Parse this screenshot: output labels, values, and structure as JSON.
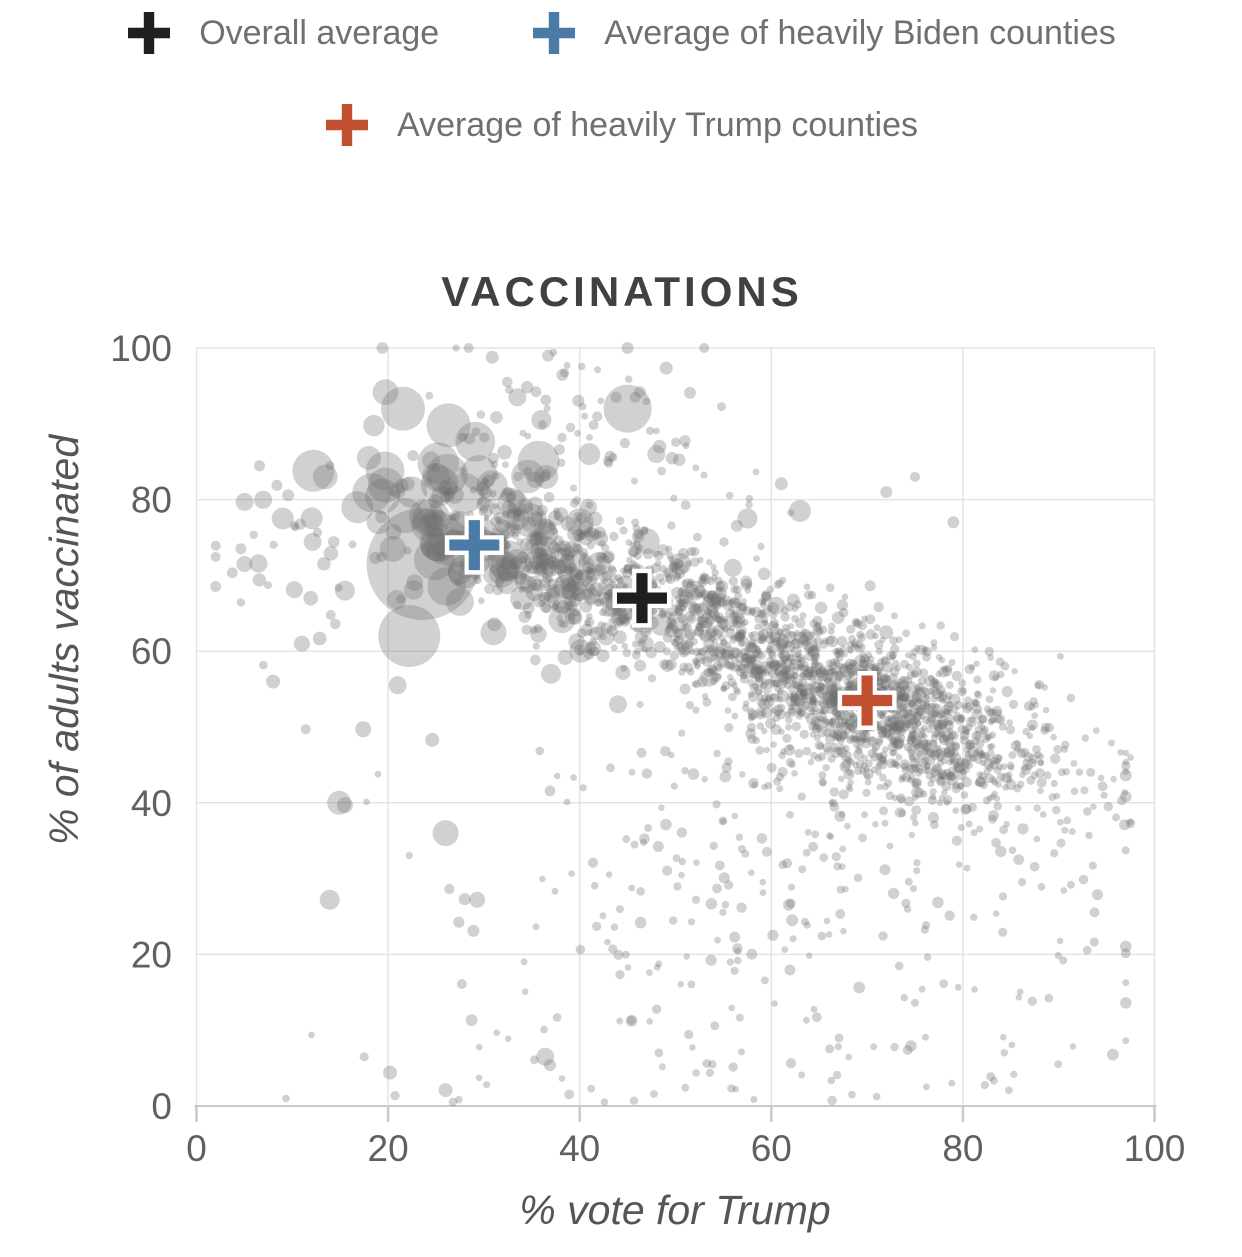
{
  "legend": {
    "items": [
      {
        "id": "overall",
        "label": "Overall average",
        "color": "#1f1f1f"
      },
      {
        "id": "biden",
        "label": "Average of heavily Biden counties",
        "color": "#4a7ba6"
      },
      {
        "id": "trump",
        "label": "Average of heavily Trump counties",
        "color": "#c0502f"
      }
    ]
  },
  "chart_data": {
    "type": "scatter",
    "title": "VACCINATIONS",
    "xlabel": "% vote for Trump",
    "ylabel": "% of adults vaccinated",
    "xlim": [
      0,
      100
    ],
    "ylim": [
      0,
      100
    ],
    "xticks": [
      0,
      20,
      40,
      60,
      80,
      100
    ],
    "yticks": [
      0,
      20,
      40,
      60,
      80,
      100
    ],
    "grid": true,
    "legend_position": "top",
    "point_style": {
      "color": "#6f6f6f",
      "opacity": 0.32
    },
    "markers": [
      {
        "name": "overall-average",
        "label": "Overall average",
        "x": 46.5,
        "y": 67,
        "color": "#1f1f1f"
      },
      {
        "name": "biden-average",
        "label": "Average of heavily Biden counties",
        "x": 29,
        "y": 74,
        "color": "#4a7ba6"
      },
      {
        "name": "trump-average",
        "label": "Average of heavily Trump counties",
        "x": 70,
        "y": 53.5,
        "color": "#c0502f"
      }
    ],
    "featured_points": [
      [
        23.6,
        71.5,
        56
      ],
      [
        22.2,
        62,
        31
      ],
      [
        45,
        92,
        24
      ],
      [
        26.3,
        89.8,
        22
      ],
      [
        12.2,
        83.8,
        21
      ],
      [
        29.5,
        83.5,
        18
      ],
      [
        24.5,
        77.5,
        19
      ],
      [
        28,
        70.5,
        17
      ],
      [
        16.8,
        79,
        16
      ],
      [
        33,
        79.5,
        15
      ],
      [
        33.5,
        71.5,
        15
      ],
      [
        30,
        74,
        16
      ],
      [
        25,
        83,
        14
      ],
      [
        36.5,
        75.5,
        12
      ],
      [
        20.5,
        73.5,
        13
      ],
      [
        27.5,
        66.5,
        14
      ],
      [
        31,
        62.5,
        13
      ],
      [
        38.5,
        68.5,
        12
      ],
      [
        42,
        71.5,
        12
      ],
      [
        44.5,
        66,
        11
      ],
      [
        47,
        74.5,
        13
      ],
      [
        50.5,
        71.5,
        11
      ],
      [
        40,
        77,
        14
      ],
      [
        36.5,
        83,
        12
      ],
      [
        34,
        67,
        12
      ],
      [
        19,
        77,
        12
      ],
      [
        18,
        85.5,
        12
      ],
      [
        15.5,
        68,
        10
      ],
      [
        11,
        61,
        8
      ],
      [
        21,
        55.5,
        9
      ],
      [
        26,
        36,
        13
      ],
      [
        13.9,
        27.2,
        10
      ],
      [
        9,
        77.5,
        11
      ],
      [
        5,
        71.5,
        8
      ],
      [
        48.5,
        63.5,
        11
      ],
      [
        52,
        68,
        10
      ],
      [
        57.5,
        77.5,
        10
      ],
      [
        63,
        78.5,
        11
      ],
      [
        36,
        90.5,
        10
      ],
      [
        41,
        86,
        11
      ],
      [
        33.5,
        93.5,
        9
      ],
      [
        37,
        57,
        10
      ],
      [
        44,
        53,
        9
      ],
      [
        53.5,
        56.5,
        9
      ],
      [
        48,
        86,
        9
      ],
      [
        56,
        71,
        9
      ],
      [
        60.5,
        66,
        9
      ],
      [
        64,
        61,
        8
      ],
      [
        68,
        57.5,
        8
      ],
      [
        72,
        62.5,
        7
      ],
      [
        58,
        60,
        8
      ],
      [
        51,
        60.5,
        8
      ],
      [
        43.8,
        93.5,
        5.5
      ],
      [
        45.8,
        93.5,
        5.5
      ],
      [
        45,
        100,
        6
      ],
      [
        53,
        100,
        5
      ],
      [
        28.4,
        100,
        5
      ],
      [
        36.7,
        99,
        6
      ],
      [
        14.9,
        40,
        12
      ],
      [
        15.5,
        39.7,
        8
      ],
      [
        11.4,
        49.7,
        5
      ],
      [
        17.4,
        49.7,
        8
      ],
      [
        24.6,
        48.3,
        7
      ],
      [
        20.2,
        4.4,
        7
      ],
      [
        26,
        2.1,
        7
      ],
      [
        36.4,
        6.5,
        9
      ],
      [
        29.3,
        27.2,
        8
      ],
      [
        28,
        27.3,
        6
      ],
      [
        28.9,
        23.1,
        6
      ],
      [
        27.7,
        16.1,
        5
      ],
      [
        8,
        56,
        7
      ],
      [
        72,
        81,
        6
      ],
      [
        75,
        83,
        5
      ],
      [
        79,
        77,
        6
      ],
      [
        36.9,
        5.4,
        6
      ]
    ],
    "scatter_model": {
      "seed": 20211101,
      "clusters": [
        {
          "kind": "gauss",
          "n": 1150,
          "cx": 71,
          "cy": 52.5,
          "sx": 8,
          "sy": 5,
          "slope": -0.35,
          "rmin": 3.2,
          "rmax": 5.8,
          "rpow": 2
        },
        {
          "kind": "gauss",
          "n": 620,
          "cx": 54,
          "cy": 63.5,
          "sx": 7.5,
          "sy": 4.2,
          "slope": -0.55,
          "rmin": 3.2,
          "rmax": 6.5,
          "rpow": 2
        },
        {
          "kind": "gauss",
          "n": 370,
          "cx": 38,
          "cy": 71,
          "sx": 7,
          "sy": 4.5,
          "slope": -0.6,
          "rmin": 3.4,
          "rmax": 8.5,
          "rpow": 2.2
        },
        {
          "kind": "gauss",
          "n": 80,
          "cx": 28.5,
          "cy": 76.5,
          "sx": 6.5,
          "sy": 5.5,
          "slope": -0.5,
          "rmin": 7,
          "rmax": 22,
          "rpow": 2.4
        },
        {
          "kind": "spray",
          "n": 330,
          "cx": 62,
          "sx": 18,
          "ymin": 2,
          "ymax": 47,
          "ypow": 1.35,
          "rmin": 3.3,
          "rmax": 6,
          "rpow": 2
        },
        {
          "kind": "gauss",
          "n": 42,
          "cx": 12,
          "cy": 73,
          "sx": 5.5,
          "sy": 8,
          "slope": 0,
          "rmin": 4,
          "rmax": 11,
          "rpow": 2
        },
        {
          "kind": "gauss",
          "n": 75,
          "cx": 43,
          "cy": 88.5,
          "sx": 10,
          "sy": 5.5,
          "slope": -0.3,
          "rmin": 3.4,
          "rmax": 7,
          "rpow": 2
        },
        {
          "kind": "gauss",
          "n": 70,
          "cx": 89,
          "cy": 43,
          "sx": 4.5,
          "sy": 7,
          "slope": -0.4,
          "rmin": 3.3,
          "rmax": 5.5,
          "rpow": 2
        },
        {
          "kind": "edge",
          "n": 14,
          "cx": 42,
          "sx": 16,
          "ybase": 0.5,
          "rmin": 3.6,
          "rmax": 5.2,
          "rpow": 1
        }
      ]
    }
  }
}
